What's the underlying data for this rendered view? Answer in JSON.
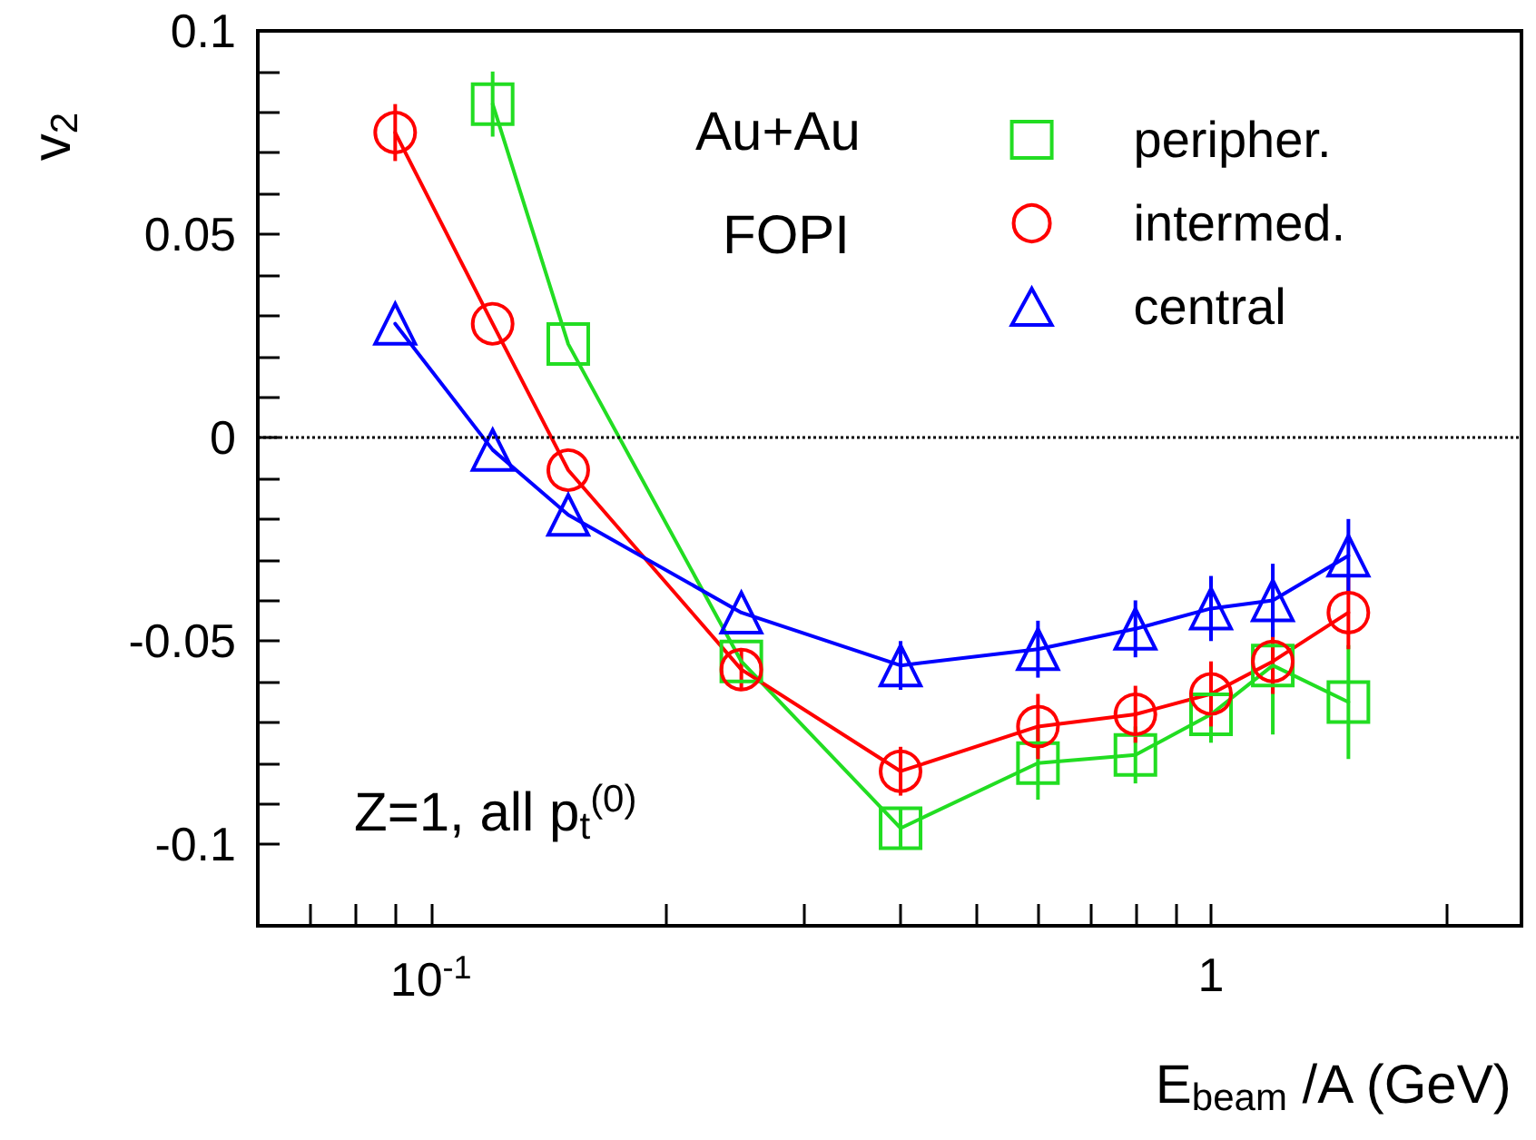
{
  "chart_data": {
    "type": "line",
    "xlabel": "E$_{beam}$ /A (GeV)",
    "ylabel": "v$_{2}$",
    "log": "x",
    "xlim": [
      0.06,
      2.5
    ],
    "ylim": [
      -0.12,
      0.1
    ],
    "xticks": [
      {
        "value": 0.06,
        "label": null
      },
      {
        "value": 0.07,
        "label": null
      },
      {
        "value": 0.08,
        "label": null
      },
      {
        "value": 0.09,
        "label": null
      },
      {
        "value": 0.1,
        "label": "10$^{-1}$"
      },
      {
        "value": 0.2,
        "label": null
      },
      {
        "value": 0.3,
        "label": null
      },
      {
        "value": 0.4,
        "label": null
      },
      {
        "value": 0.5,
        "label": null
      },
      {
        "value": 0.6,
        "label": null
      },
      {
        "value": 0.7,
        "label": null
      },
      {
        "value": 0.8,
        "label": null
      },
      {
        "value": 0.9,
        "label": null
      },
      1,
      {
        "value": 2,
        "label": null
      }
    ],
    "yticks": [
      -0.1,
      {
        "value": -0.09,
        "label": null
      },
      {
        "value": -0.08,
        "label": null
      },
      {
        "value": -0.07,
        "label": null
      },
      {
        "value": -0.06,
        "label": null
      },
      -0.05,
      {
        "value": -0.04,
        "label": null
      },
      {
        "value": -0.03,
        "label": null
      },
      {
        "value": -0.02,
        "label": null
      },
      {
        "value": -0.01,
        "label": null
      },
      0,
      {
        "value": 0.01,
        "label": null
      },
      {
        "value": 0.02,
        "label": null
      },
      {
        "value": 0.03,
        "label": null
      },
      {
        "value": 0.04,
        "label": null
      },
      0.05,
      {
        "value": 0.06,
        "label": null
      },
      {
        "value": 0.07,
        "label": null
      },
      {
        "value": 0.08,
        "label": null
      },
      {
        "value": 0.09,
        "label": null
      },
      0.1
    ],
    "grid": false,
    "legend": "top right",
    "line_style": "solid",
    "x": [
      0.09,
      0.12,
      0.15,
      0.25,
      0.4,
      0.6,
      0.8,
      1.0,
      1.2,
      1.5
    ],
    "series": [
      {
        "name": "peripher.",
        "color": "#22dd22",
        "marker": "square",
        "values": [
          null,
          0.082,
          0.023,
          -0.055,
          -0.096,
          -0.08,
          -0.078,
          -0.068,
          -0.056,
          -0.065
        ],
        "errors": [
          null,
          0.008,
          null,
          null,
          0.005,
          0.009,
          0.007,
          0.007,
          0.017,
          0.014
        ]
      },
      {
        "name": "intermed.",
        "color": "#ff0000",
        "marker": "circle",
        "values": [
          0.075,
          0.028,
          -0.008,
          -0.057,
          -0.082,
          -0.071,
          -0.068,
          -0.063,
          -0.055,
          -0.043
        ],
        "errors": [
          0.007,
          null,
          null,
          0.005,
          0.006,
          0.008,
          0.007,
          0.008,
          0.008,
          0.009
        ]
      },
      {
        "name": "central",
        "color": "#0000ff",
        "marker": "triangle",
        "values": [
          0.028,
          -0.003,
          -0.019,
          -0.043,
          -0.056,
          -0.052,
          -0.047,
          -0.042,
          -0.04,
          -0.029
        ],
        "errors": [
          null,
          null,
          null,
          null,
          0.006,
          0.007,
          0.007,
          0.008,
          0.009,
          0.009
        ]
      }
    ],
    "ref_lines": [
      {
        "axis": "y",
        "value": 0,
        "color": "#000000",
        "line_style": "dotted"
      }
    ],
    "annotations": [
      "Au+Au",
      "FOPI",
      "Z=1, all p$_{t}$$^{(0)}$"
    ]
  }
}
